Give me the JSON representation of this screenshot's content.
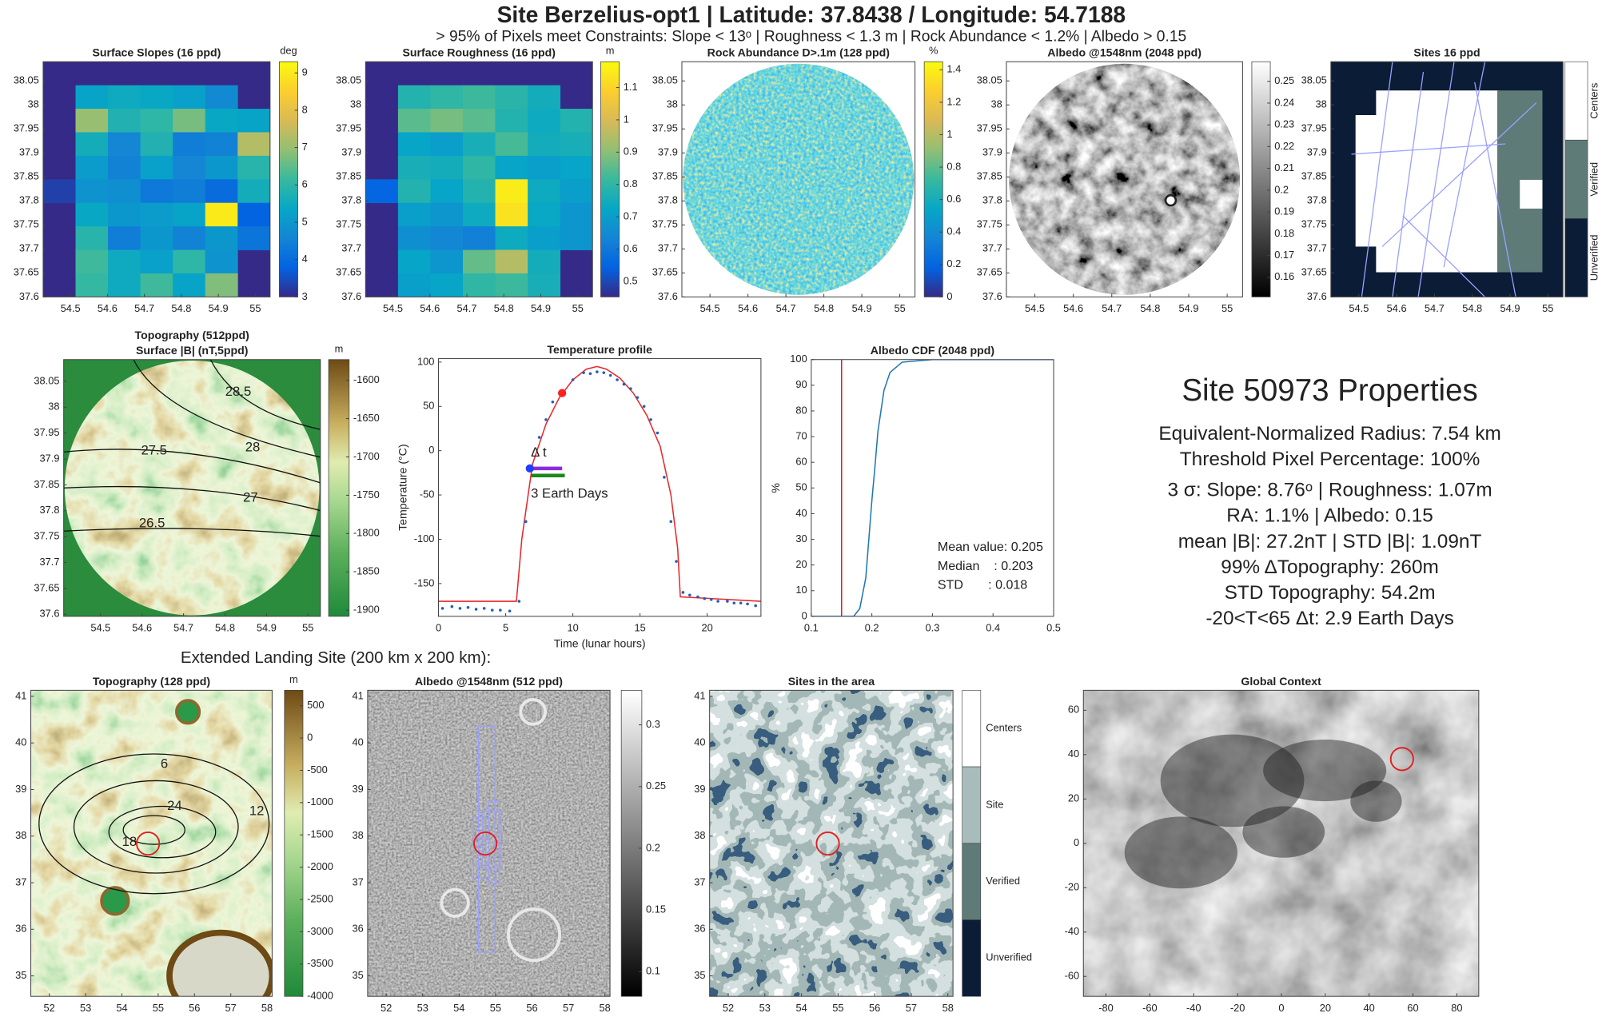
{
  "header": {
    "title": "Site Berzelius-opt1  |  Latitude: 37.8438 / Longitude: 54.7188",
    "subtitle": "> 95% of Pixels meet Constraints:  Slope < 13ᵒ    |    Roughness < 1.3 m    |    Rock Abundance < 1.2%    |    Albedo > 0.15"
  },
  "section_label": "Extended Landing Site (200 km x 200 km):",
  "properties": {
    "title": "Site 50973 Properties",
    "lines": [
      "Equivalent-Normalized Radius: 7.54 km",
      "Threshold Pixel Percentage: 100%",
      "3 σ:  Slope: 8.76ᵒ   |   Roughness: 1.07m",
      "RA: 1.1%     |     Albedo: 0.15",
      "mean |B|: 27.2nT    |    STD |B|: 1.09nT",
      "99% ΔTopography: 260m",
      "STD Topography: 54.2m",
      "-20<T<65 Δt: 2.9 Earth Days"
    ]
  },
  "chart_data": [
    {
      "type": "heatmap",
      "title": "Surface Slopes (16 ppd)",
      "colormap": "parula",
      "xlim": [
        54.426,
        55.04
      ],
      "ylim": [
        37.6,
        38.09
      ],
      "xticks": [
        54.5,
        54.6,
        54.7,
        54.8,
        54.9,
        55
      ],
      "yticks": [
        37.6,
        37.65,
        37.7,
        37.75,
        37.8,
        37.85,
        37.9,
        37.95,
        38,
        38.05
      ],
      "z": [
        [
          null,
          null,
          null,
          null,
          null,
          null,
          null
        ],
        [
          null,
          5.3,
          5.5,
          5.4,
          5.2,
          4.7,
          null
        ],
        [
          null,
          7.0,
          5.8,
          6.0,
          6.7,
          5.4,
          5.3
        ],
        [
          null,
          5.6,
          4.6,
          5.8,
          4.4,
          4.5,
          7.3
        ],
        [
          null,
          5.1,
          4.5,
          5.2,
          4.6,
          5.0,
          5.9
        ],
        [
          3.3,
          4.9,
          4.8,
          4.3,
          4.4,
          4.0,
          5.6
        ],
        [
          null,
          5.4,
          5.0,
          5.1,
          5.3,
          9.0,
          3.8
        ],
        [
          null,
          5.9,
          4.4,
          5.0,
          4.5,
          5.0,
          4.2
        ],
        [
          null,
          6.2,
          5.5,
          5.2,
          6.0,
          4.9,
          null
        ],
        [
          null,
          6.1,
          5.5,
          6.2,
          5.3,
          6.8,
          null
        ]
      ],
      "colorbar": {
        "label": "deg",
        "colormap": "parula",
        "clim": [
          3,
          9.3
        ],
        "ticks": [
          3,
          4,
          5,
          6,
          7,
          8,
          9
        ]
      }
    },
    {
      "type": "heatmap",
      "title": "Surface Roughness (16 ppd)",
      "colormap": "parula",
      "xlim": [
        54.426,
        55.04
      ],
      "ylim": [
        37.6,
        38.09
      ],
      "xticks": [
        54.5,
        54.6,
        54.7,
        54.8,
        54.9,
        55
      ],
      "yticks": [
        37.6,
        37.65,
        37.7,
        37.75,
        37.8,
        37.85,
        37.9,
        37.95,
        38,
        38.05
      ],
      "z": [
        [
          null,
          null,
          null,
          null,
          null,
          null,
          null
        ],
        [
          null,
          0.78,
          0.8,
          0.82,
          0.79,
          0.75,
          null
        ],
        [
          null,
          0.85,
          0.88,
          0.85,
          0.78,
          0.74,
          0.78
        ],
        [
          null,
          0.72,
          0.7,
          0.76,
          0.83,
          0.75,
          0.76
        ],
        [
          null,
          0.76,
          0.75,
          0.8,
          0.72,
          0.7,
          0.72
        ],
        [
          0.55,
          0.78,
          0.72,
          0.78,
          1.15,
          0.74,
          0.7
        ],
        [
          null,
          0.7,
          0.68,
          0.74,
          1.13,
          0.73,
          0.68
        ],
        [
          null,
          0.66,
          0.64,
          0.62,
          0.74,
          0.7,
          0.68
        ],
        [
          null,
          0.72,
          0.68,
          0.86,
          0.95,
          0.75,
          null
        ],
        [
          null,
          0.7,
          0.72,
          0.8,
          0.82,
          0.76,
          null
        ]
      ],
      "colorbar": {
        "label": "m",
        "colormap": "parula",
        "clim": [
          0.452,
          1.18
        ],
        "ticks": [
          0.5,
          0.6,
          0.7,
          0.8,
          0.9,
          1,
          1.1
        ]
      }
    },
    {
      "type": "image",
      "title": "Rock Abundance D>.1m (128 ppd)",
      "xlim": [
        54.426,
        55.04
      ],
      "ylim": [
        37.6,
        38.09
      ],
      "xticks": [
        54.5,
        54.6,
        54.7,
        54.8,
        54.9,
        55
      ],
      "yticks": [
        37.6,
        37.65,
        37.7,
        37.75,
        37.8,
        37.85,
        37.9,
        37.95,
        38,
        38.05
      ],
      "colorbar": {
        "label": "%",
        "colormap": "parula",
        "clim": [
          0,
          1.45
        ],
        "ticks": [
          0,
          0.2,
          0.4,
          0.6,
          0.8,
          1,
          1.2,
          1.4
        ]
      }
    },
    {
      "type": "image",
      "title": "Albedo @1548nm (2048 ppd)",
      "xlim": [
        54.426,
        55.04
      ],
      "ylim": [
        37.6,
        38.09
      ],
      "xticks": [
        54.5,
        54.6,
        54.7,
        54.8,
        54.9,
        55
      ],
      "yticks": [
        37.6,
        37.65,
        37.7,
        37.75,
        37.8,
        37.85,
        37.9,
        37.95,
        38,
        38.05
      ],
      "colorbar": {
        "colormap": "gray",
        "clim": [
          0.151,
          0.259
        ],
        "ticks": [
          0.16,
          0.17,
          0.18,
          0.19,
          0.2,
          0.21,
          0.22,
          0.23,
          0.24,
          0.25
        ]
      }
    },
    {
      "type": "image",
      "title": "Sites 16 ppd",
      "xlim": [
        54.426,
        55.04
      ],
      "ylim": [
        37.6,
        38.09
      ],
      "xticks": [
        54.5,
        54.6,
        54.7,
        54.8,
        54.9,
        55
      ],
      "yticks": [
        37.6,
        37.65,
        37.7,
        37.75,
        37.8,
        37.85,
        37.9,
        37.95,
        38,
        38.05
      ],
      "colorbar": {
        "categories": [
          "Centers",
          "Verified",
          "Unverified"
        ],
        "colors": [
          "#ffffff",
          "#5e7b78",
          "#0b1c36"
        ]
      }
    },
    {
      "type": "image",
      "title": [
        "Topography (512ppd)",
        "Surface |B| (nT,5ppd)"
      ],
      "xlim": [
        54.411,
        55.03
      ],
      "ylim": [
        37.596,
        38.092
      ],
      "xticks": [
        54.5,
        54.6,
        54.7,
        54.8,
        54.9,
        55
      ],
      "yticks": [
        37.6,
        37.65,
        37.7,
        37.75,
        37.8,
        37.85,
        37.9,
        37.95,
        38,
        38.05
      ],
      "contour_levels": [
        28.5,
        28,
        27.5,
        27,
        26.5
      ],
      "colorbar": {
        "label": "m",
        "colormap": "topo",
        "clim": [
          -1908,
          -1573
        ],
        "ticks": [
          -1900,
          -1850,
          -1800,
          -1750,
          -1700,
          -1650,
          -1600
        ]
      }
    },
    {
      "type": "line",
      "title": "Temperature profile",
      "xlabel": "Time (lunar hours)",
      "ylabel": "Temperature (°C)",
      "xlim": [
        0,
        24
      ],
      "ylim": [
        -187,
        104
      ],
      "xticks": [
        0,
        5,
        10,
        15,
        20
      ],
      "yticks": [
        -150,
        -100,
        -50,
        0,
        50,
        100
      ],
      "points": {
        "color": "#1f5fbf",
        "x": [
          0.3,
          1,
          1.6,
          2.2,
          2.8,
          3.4,
          4,
          4.6,
          5.3,
          6,
          6.5,
          7,
          7.5,
          8,
          8.5,
          9,
          10,
          10.8,
          11.3,
          11.8,
          12.3,
          12.8,
          13.3,
          13.8,
          14.3,
          14.8,
          15.3,
          15.8,
          16.3,
          16.8,
          17.3,
          17.7,
          18.2,
          18.7,
          19.3,
          19.8,
          20.3,
          20.8,
          21.5,
          22,
          22.5,
          23,
          23.6
        ],
        "y": [
          -178,
          -176,
          -178,
          -177,
          -179,
          -178,
          -180,
          -180,
          -181,
          -170,
          -80,
          -20,
          15,
          35,
          55,
          65,
          80,
          88,
          87,
          89,
          88,
          85,
          80,
          75,
          70,
          60,
          50,
          35,
          20,
          -30,
          -80,
          -125,
          -160,
          -163,
          -165,
          -167,
          -168,
          -170,
          -170,
          -172,
          -172,
          -173,
          -175
        ]
      },
      "fit": {
        "color": "#e8282b",
        "x": [
          0,
          5.8,
          6.2,
          7,
          8,
          9,
          10,
          11,
          11.8,
          12.5,
          13.5,
          14.5,
          15.5,
          16.5,
          17.3,
          17.8,
          18,
          24
        ],
        "y": [
          -170,
          -170,
          -100,
          -15,
          30,
          60,
          80,
          92,
          95,
          92,
          82,
          65,
          40,
          5,
          -50,
          -110,
          -165,
          -170
        ]
      },
      "markers": [
        {
          "x": 6.8,
          "y": -20,
          "color": "#1f3fff"
        },
        {
          "x": 9.2,
          "y": 65,
          "color": "#ff2020"
        }
      ],
      "intervals": [
        {
          "x": [
            6.8,
            9.2
          ],
          "y": -20,
          "color": "#8a2be2"
        },
        {
          "x": [
            6.9,
            9.4
          ],
          "y": -28,
          "color": "#1a8a1a"
        }
      ],
      "annotations": [
        "Δ t",
        "3 Earth Days"
      ]
    },
    {
      "type": "line",
      "title": "Albedo CDF (2048 ppd)",
      "ylabel": "%",
      "xlim": [
        0.1,
        0.5
      ],
      "ylim": [
        0,
        100
      ],
      "xticks": [
        0.1,
        0.2,
        0.3,
        0.4,
        0.5
      ],
      "yticks": [
        0,
        10,
        20,
        30,
        40,
        50,
        60,
        70,
        80,
        90,
        100
      ],
      "curve": {
        "color": "#1f77b4",
        "x": [
          0.1,
          0.17,
          0.18,
          0.19,
          0.195,
          0.2,
          0.205,
          0.21,
          0.22,
          0.23,
          0.25,
          0.3,
          0.5
        ],
        "y": [
          0,
          0,
          3,
          15,
          30,
          45,
          58,
          72,
          88,
          95,
          99,
          100,
          100
        ]
      },
      "threshold": {
        "x": 0.15,
        "color": "#e02020"
      },
      "stats": [
        "Mean value: 0.205",
        "Median    : 0.203",
        "STD       : 0.018"
      ]
    },
    {
      "type": "image",
      "title": "Topography (128 ppd)",
      "xlim": [
        51.49,
        58.14
      ],
      "ylim": [
        34.56,
        41.13
      ],
      "xticks": [
        52,
        53,
        54,
        55,
        56,
        57,
        58
      ],
      "yticks": [
        35,
        36,
        37,
        38,
        39,
        40,
        41
      ],
      "contour_levels": [
        6,
        24,
        12,
        18
      ],
      "marker": {
        "x": 54.72,
        "y": 37.84,
        "color": "#e02020"
      },
      "colorbar": {
        "label": "m",
        "colormap": "topo",
        "clim": [
          -4000,
          739
        ],
        "ticks": [
          -4000,
          -3500,
          -3000,
          -2500,
          -2000,
          -1500,
          -1000,
          -500,
          0,
          500
        ]
      }
    },
    {
      "type": "image",
      "title": "Albedo @1548nm (512 ppd)",
      "xlim": [
        51.49,
        58.14
      ],
      "ylim": [
        34.56,
        41.13
      ],
      "xticks": [
        52,
        53,
        54,
        55,
        56,
        57,
        58
      ],
      "yticks": [
        35,
        36,
        37,
        38,
        39,
        40,
        41
      ],
      "marker": {
        "x": 54.72,
        "y": 37.84,
        "color": "#e02020"
      },
      "colorbar": {
        "colormap": "gray",
        "clim": [
          0.08,
          0.328
        ],
        "ticks": [
          0.1,
          0.15,
          0.2,
          0.25,
          0.3
        ]
      }
    },
    {
      "type": "image",
      "title": "Sites in the area",
      "xlim": [
        51.49,
        58.14
      ],
      "ylim": [
        34.56,
        41.13
      ],
      "xticks": [
        52,
        53,
        54,
        55,
        56,
        57,
        58
      ],
      "yticks": [
        35,
        36,
        37,
        38,
        39,
        40,
        41
      ],
      "marker": {
        "x": 54.72,
        "y": 37.84,
        "color": "#e02020"
      },
      "colorbar": {
        "categories": [
          "Centers",
          "Site",
          "Verified",
          "Unverified"
        ],
        "colors": [
          "#ffffff",
          "#a9bcbc",
          "#5e7b78",
          "#0b1c36"
        ]
      }
    },
    {
      "type": "image",
      "title": "Global Context",
      "xlim": [
        -90.3,
        90
      ],
      "ylim": [
        -69,
        69
      ],
      "xticks": [
        -80,
        -60,
        -40,
        -20,
        0,
        20,
        40,
        60,
        80
      ],
      "yticks": [
        -60,
        -40,
        -20,
        0,
        20,
        40,
        60
      ],
      "marker": {
        "x": 55,
        "y": 38,
        "color": "#e02020"
      }
    }
  ]
}
